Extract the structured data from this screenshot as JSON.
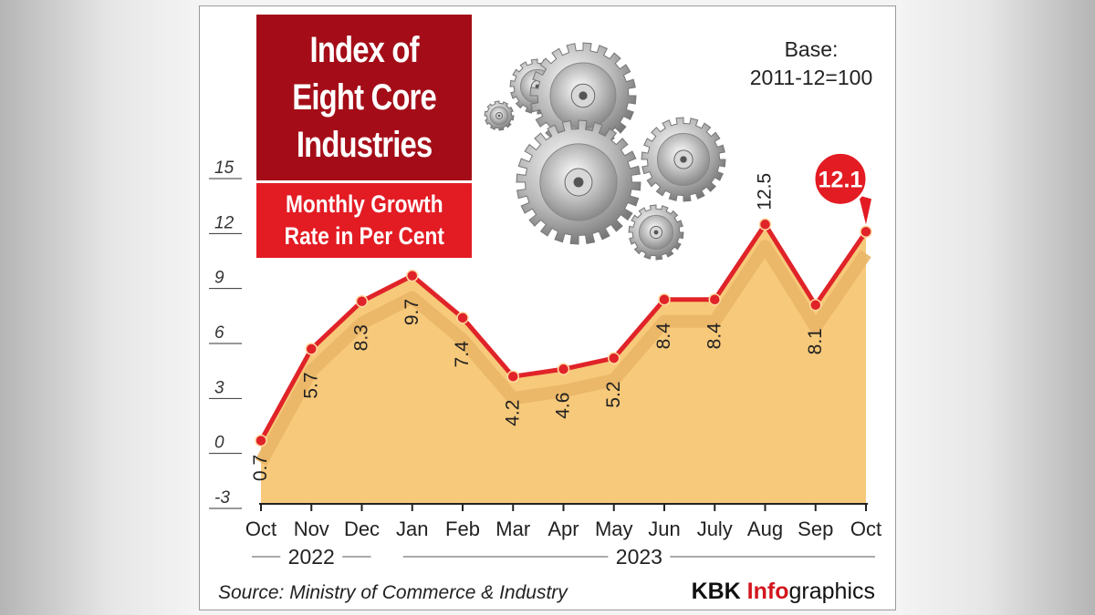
{
  "title": "Index of\nEight Core\nIndustries",
  "subtitle": "Monthly Growth\nRate in Per Cent",
  "base_note": "Base:\n2011-12=100",
  "source": "Source: Ministry of Commerce & Industry",
  "credit": {
    "brand": "KBK ",
    "accent": "Info",
    "rest": "graphics"
  },
  "colors": {
    "line": "#e02329",
    "area": "#f7c97a",
    "shadow": "#e9b566",
    "title_bg": "#a40d18",
    "subtitle_bg": "#e31b23"
  },
  "chart_data": {
    "type": "area",
    "title": "Index of Eight Core Industries — Monthly Growth Rate in Per Cent",
    "categories": [
      "Oct",
      "Nov",
      "Dec",
      "Jan",
      "Feb",
      "Mar",
      "Apr",
      "May",
      "Jun",
      "July",
      "Aug",
      "Sep",
      "Oct"
    ],
    "values": [
      0.7,
      5.7,
      8.3,
      9.7,
      7.4,
      4.2,
      4.6,
      5.2,
      8.4,
      8.4,
      12.5,
      8.1,
      12.1
    ],
    "value_labels": [
      "0.7",
      "5.7",
      "8.3",
      "9.7",
      "7.4",
      "4.2",
      "4.6",
      "5.2",
      "8.4",
      "8.4",
      "12.5",
      "8.1",
      "12.1"
    ],
    "highlight_label": "12.1",
    "year_groups": [
      {
        "label": "2022",
        "from": 0,
        "to": 2
      },
      {
        "label": "2023",
        "from": 3,
        "to": 12
      }
    ],
    "ylim": [
      -3,
      15
    ],
    "yticks": [
      "-3",
      "0",
      "3",
      "6",
      "9",
      "12",
      "15"
    ],
    "xlabel": "",
    "ylabel": ""
  }
}
